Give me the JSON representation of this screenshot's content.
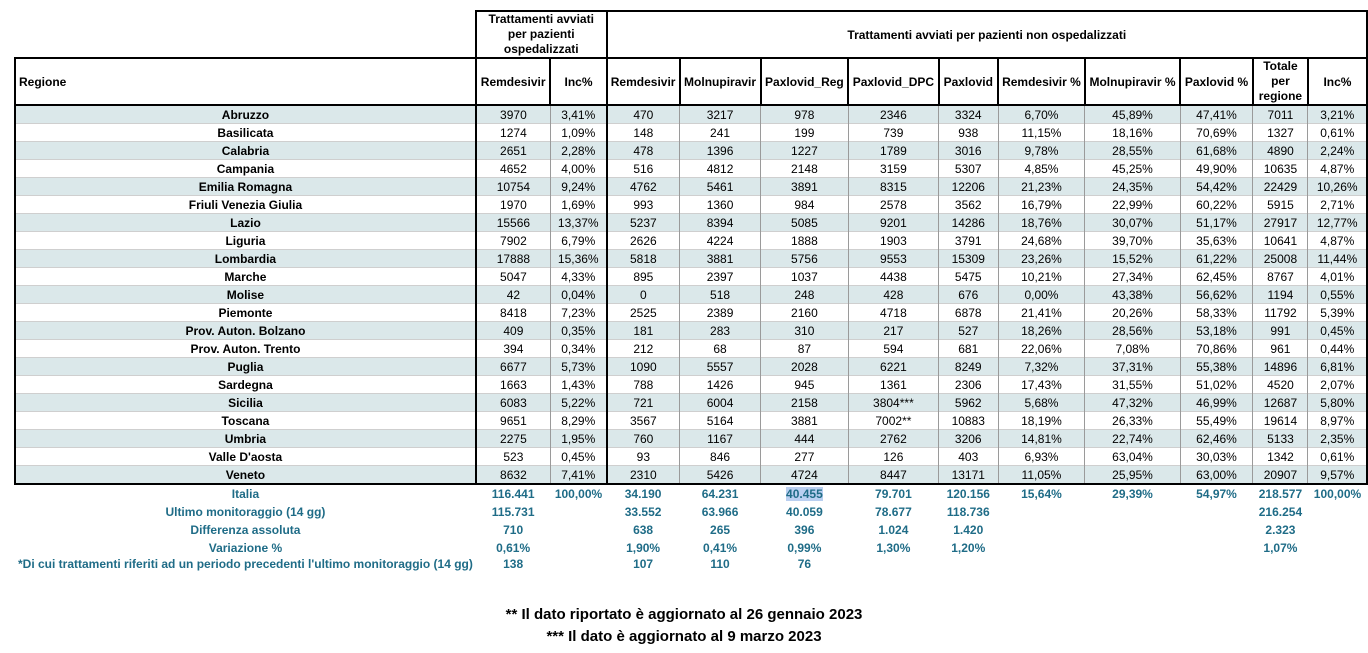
{
  "header": {
    "hosp_group": "Trattamenti avviati per pazienti ospedalizzati",
    "nonhosp_group": "Trattamenti avviati per pazienti non ospedalizzati",
    "columns": [
      "Regione",
      "Remdesivir",
      "Inc%",
      "Remdesivir",
      "Molnupiravir",
      "Paxlovid_Reg",
      "Paxlovid_DPC",
      "Paxlovid",
      "Remdesivir %",
      "Molnupiravir %",
      "Paxlovid %",
      "Totale per regione",
      "Inc%"
    ]
  },
  "rows": [
    [
      "Abruzzo",
      "3970",
      "3,41%",
      "470",
      "3217",
      "978",
      "2346",
      "3324",
      "6,70%",
      "45,89%",
      "47,41%",
      "7011",
      "3,21%"
    ],
    [
      "Basilicata",
      "1274",
      "1,09%",
      "148",
      "241",
      "199",
      "739",
      "938",
      "11,15%",
      "18,16%",
      "70,69%",
      "1327",
      "0,61%"
    ],
    [
      "Calabria",
      "2651",
      "2,28%",
      "478",
      "1396",
      "1227",
      "1789",
      "3016",
      "9,78%",
      "28,55%",
      "61,68%",
      "4890",
      "2,24%"
    ],
    [
      "Campania",
      "4652",
      "4,00%",
      "516",
      "4812",
      "2148",
      "3159",
      "5307",
      "4,85%",
      "45,25%",
      "49,90%",
      "10635",
      "4,87%"
    ],
    [
      "Emilia Romagna",
      "10754",
      "9,24%",
      "4762",
      "5461",
      "3891",
      "8315",
      "12206",
      "21,23%",
      "24,35%",
      "54,42%",
      "22429",
      "10,26%"
    ],
    [
      "Friuli Venezia Giulia",
      "1970",
      "1,69%",
      "993",
      "1360",
      "984",
      "2578",
      "3562",
      "16,79%",
      "22,99%",
      "60,22%",
      "5915",
      "2,71%"
    ],
    [
      "Lazio",
      "15566",
      "13,37%",
      "5237",
      "8394",
      "5085",
      "9201",
      "14286",
      "18,76%",
      "30,07%",
      "51,17%",
      "27917",
      "12,77%"
    ],
    [
      "Liguria",
      "7902",
      "6,79%",
      "2626",
      "4224",
      "1888",
      "1903",
      "3791",
      "24,68%",
      "39,70%",
      "35,63%",
      "10641",
      "4,87%"
    ],
    [
      "Lombardia",
      "17888",
      "15,36%",
      "5818",
      "3881",
      "5756",
      "9553",
      "15309",
      "23,26%",
      "15,52%",
      "61,22%",
      "25008",
      "11,44%"
    ],
    [
      "Marche",
      "5047",
      "4,33%",
      "895",
      "2397",
      "1037",
      "4438",
      "5475",
      "10,21%",
      "27,34%",
      "62,45%",
      "8767",
      "4,01%"
    ],
    [
      "Molise",
      "42",
      "0,04%",
      "0",
      "518",
      "248",
      "428",
      "676",
      "0,00%",
      "43,38%",
      "56,62%",
      "1194",
      "0,55%"
    ],
    [
      "Piemonte",
      "8418",
      "7,23%",
      "2525",
      "2389",
      "2160",
      "4718",
      "6878",
      "21,41%",
      "20,26%",
      "58,33%",
      "11792",
      "5,39%"
    ],
    [
      "Prov. Auton. Bolzano",
      "409",
      "0,35%",
      "181",
      "283",
      "310",
      "217",
      "527",
      "18,26%",
      "28,56%",
      "53,18%",
      "991",
      "0,45%"
    ],
    [
      "Prov. Auton. Trento",
      "394",
      "0,34%",
      "212",
      "68",
      "87",
      "594",
      "681",
      "22,06%",
      "7,08%",
      "70,86%",
      "961",
      "0,44%"
    ],
    [
      "Puglia",
      "6677",
      "5,73%",
      "1090",
      "5557",
      "2028",
      "6221",
      "8249",
      "7,32%",
      "37,31%",
      "55,38%",
      "14896",
      "6,81%"
    ],
    [
      "Sardegna",
      "1663",
      "1,43%",
      "788",
      "1426",
      "945",
      "1361",
      "2306",
      "17,43%",
      "31,55%",
      "51,02%",
      "4520",
      "2,07%"
    ],
    [
      "Sicilia",
      "6083",
      "5,22%",
      "721",
      "6004",
      "2158",
      "3804***",
      "5962",
      "5,68%",
      "47,32%",
      "46,99%",
      "12687",
      "5,80%"
    ],
    [
      "Toscana",
      "9651",
      "8,29%",
      "3567",
      "5164",
      "3881",
      "7002**",
      "10883",
      "18,19%",
      "26,33%",
      "55,49%",
      "19614",
      "8,97%"
    ],
    [
      "Umbria",
      "2275",
      "1,95%",
      "760",
      "1167",
      "444",
      "2762",
      "3206",
      "14,81%",
      "22,74%",
      "62,46%",
      "5133",
      "2,35%"
    ],
    [
      "Valle D'aosta",
      "523",
      "0,45%",
      "93",
      "846",
      "277",
      "126",
      "403",
      "6,93%",
      "63,04%",
      "30,03%",
      "1342",
      "0,61%"
    ],
    [
      "Veneto",
      "8632",
      "7,41%",
      "2310",
      "5426",
      "4724",
      "8447",
      "13171",
      "11,05%",
      "25,95%",
      "63,00%",
      "20907",
      "9,57%"
    ]
  ],
  "summary": [
    [
      "Italia",
      "116.441",
      "100,00%",
      "34.190",
      "64.231",
      "40.455",
      "79.701",
      "120.156",
      "15,64%",
      "29,39%",
      "54,97%",
      "218.577",
      "100,00%"
    ],
    [
      "Ultimo monitoraggio (14 gg)",
      "115.731",
      "",
      "33.552",
      "63.966",
      "40.059",
      "78.677",
      "118.736",
      "",
      "",
      "",
      "216.254",
      ""
    ],
    [
      "Differenza assoluta",
      "710",
      "",
      "638",
      "265",
      "396",
      "1.024",
      "1.420",
      "",
      "",
      "",
      "2.323",
      ""
    ],
    [
      "Variazione %",
      "0,61%",
      "",
      "1,90%",
      "0,41%",
      "0,99%",
      "1,30%",
      "1,20%",
      "",
      "",
      "",
      "1,07%",
      ""
    ]
  ],
  "note": [
    "*Di cui trattamenti riferiti ad un periodo precedenti l'ultimo monitoraggio (14 gg)",
    "138",
    "",
    "107",
    "110",
    "76",
    "",
    "",
    "",
    "",
    "",
    "",
    ""
  ],
  "footnotes": [
    "** Il dato riportato è aggiornato al 26 gennaio 2023",
    "*** Il dato è aggiornato al 9 marzo 2023"
  ]
}
